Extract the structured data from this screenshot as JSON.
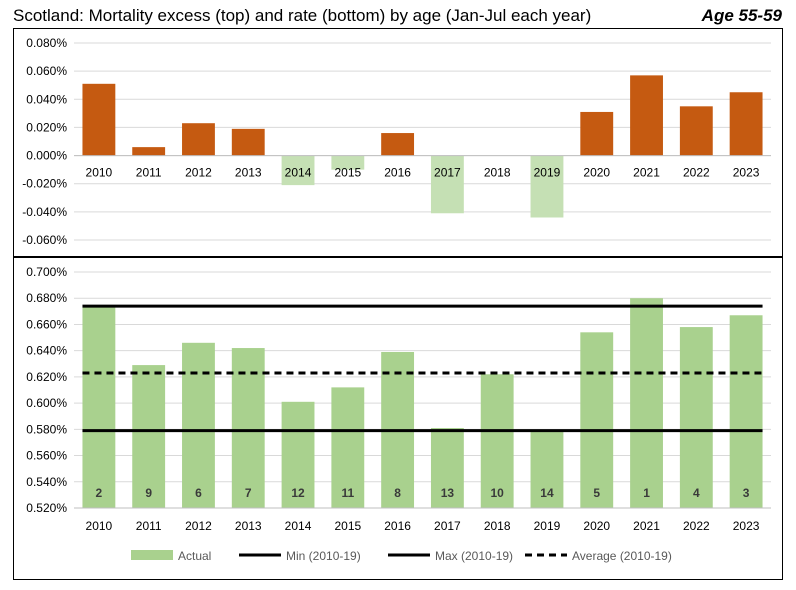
{
  "header": {
    "title": "Scotland: Mortality excess (top) and rate (bottom) by age (Jan-Jul each year)",
    "subtitle": "Age 55-59"
  },
  "colors": {
    "positive": "#c55a11",
    "negative": "#c5e0b4",
    "actual": "#a9d18e",
    "rank_text": "#3a3a3a",
    "grid": "#d9d9d9",
    "line": "#000000"
  },
  "chart_data": [
    {
      "type": "bar",
      "name": "excess",
      "categories": [
        "2010",
        "2011",
        "2012",
        "2013",
        "2014",
        "2015",
        "2016",
        "2017",
        "2018",
        "2019",
        "2020",
        "2021",
        "2022",
        "2023"
      ],
      "values": [
        0.051,
        0.006,
        0.023,
        0.019,
        -0.021,
        -0.01,
        0.016,
        -0.041,
        0.0,
        -0.044,
        0.031,
        0.057,
        0.035,
        0.045
      ],
      "yticks": [
        "0.080%",
        "0.060%",
        "0.040%",
        "0.020%",
        "0.000%",
        "-0.020%",
        "-0.040%",
        "-0.060%"
      ],
      "ylim": [
        -0.06,
        0.08
      ],
      "grid": true
    },
    {
      "type": "bar",
      "name": "rate",
      "categories": [
        "2010",
        "2011",
        "2012",
        "2013",
        "2014",
        "2015",
        "2016",
        "2017",
        "2018",
        "2019",
        "2020",
        "2021",
        "2022",
        "2023"
      ],
      "series": [
        {
          "name": "Actual",
          "values": [
            0.673,
            0.629,
            0.646,
            0.642,
            0.601,
            0.612,
            0.639,
            0.581,
            0.622,
            0.579,
            0.654,
            0.68,
            0.658,
            0.667
          ]
        }
      ],
      "ranks": [
        "2",
        "9",
        "6",
        "7",
        "12",
        "11",
        "8",
        "13",
        "10",
        "14",
        "5",
        "1",
        "4",
        "3"
      ],
      "reference_lines": [
        {
          "name": "Min (2010-19)",
          "value": 0.579,
          "style": "solid"
        },
        {
          "name": "Max (2010-19)",
          "value": 0.674,
          "style": "solid"
        },
        {
          "name": "Average (2010-19)",
          "value": 0.623,
          "style": "dashed"
        }
      ],
      "yticks": [
        "0.700%",
        "0.680%",
        "0.660%",
        "0.640%",
        "0.620%",
        "0.600%",
        "0.580%",
        "0.560%",
        "0.540%",
        "0.520%"
      ],
      "ylim": [
        0.52,
        0.7
      ],
      "grid": true,
      "legend_position": "bottom"
    }
  ]
}
